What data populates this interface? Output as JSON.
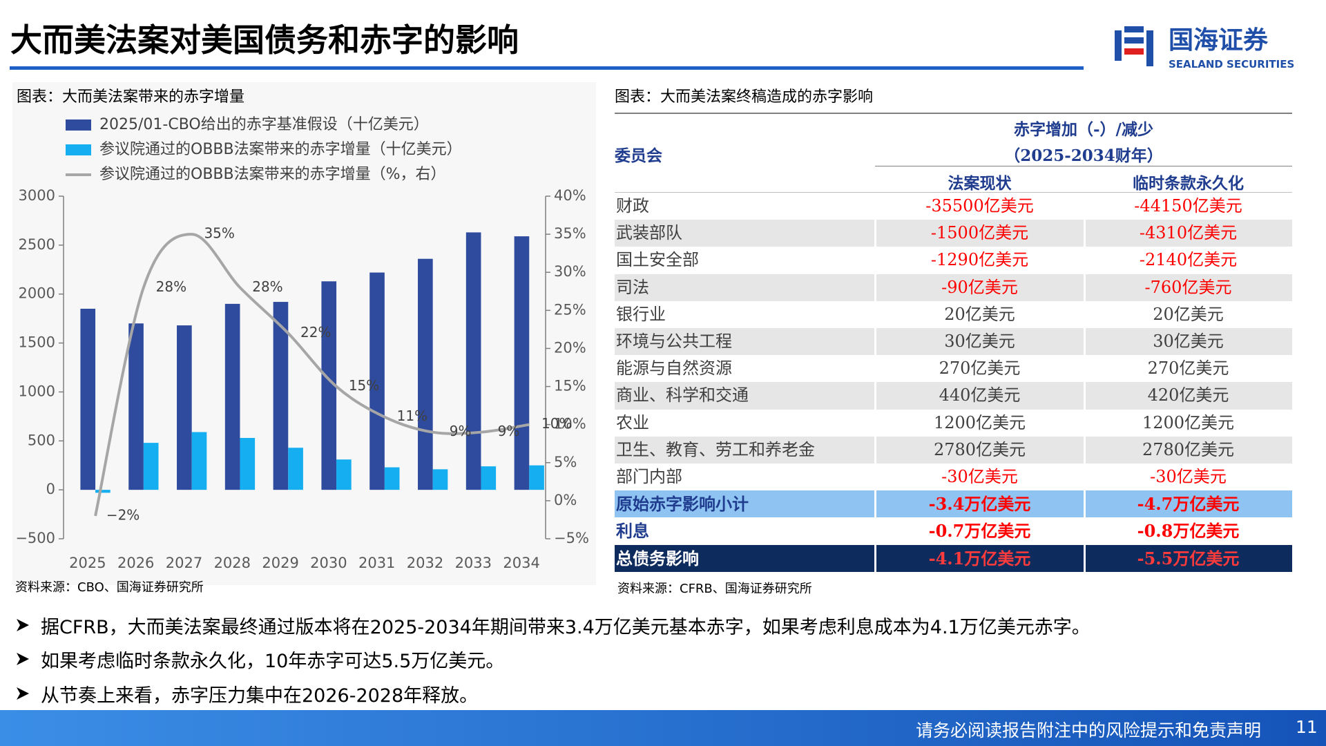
{
  "header": {
    "title": "大而美法案对美国债务和赤字的影响",
    "logo": {
      "cn": "国海证券",
      "en": "SEALAND SECURITIES"
    }
  },
  "left_caption": "图表：大而美法案带来的赤字增量",
  "left_source": "资料来源：CBO、国海证券研究所",
  "chart_data": {
    "type": "combo",
    "categories": [
      "2025",
      "2026",
      "2027",
      "2028",
      "2029",
      "2030",
      "2031",
      "2032",
      "2033",
      "2034"
    ],
    "series": [
      {
        "name": "2025/01-CBO给出的赤字基准假设（十亿美元）",
        "type": "bar",
        "color": "#2f4b9e",
        "values": [
          1850,
          1700,
          1680,
          1900,
          1920,
          2130,
          2220,
          2360,
          2630,
          2590
        ]
      },
      {
        "name": "参议院通过的OBBB法案带来的赤字增量（十亿美元）",
        "type": "bar",
        "color": "#15aef0",
        "values": [
          -30,
          480,
          590,
          530,
          430,
          310,
          230,
          210,
          240,
          250
        ]
      },
      {
        "name": "参议院通过的OBBB法案带来的赤字增量（%，右）",
        "type": "line",
        "axis": "y2",
        "color": "#a6a6a6",
        "values": [
          -2,
          28,
          35,
          28,
          22,
          15,
          11,
          9,
          9,
          10
        ],
        "value_labels": [
          "−2%",
          "28%",
          "35%",
          "28%",
          "22%",
          "15%",
          "11%",
          "9%",
          "9%",
          "10%"
        ]
      }
    ],
    "ylim": [
      -500,
      3000
    ],
    "yticks": [
      {
        "value": -500,
        "label": "−500"
      },
      0,
      500,
      1000,
      1500,
      2000,
      2500,
      3000
    ],
    "y2lim": [
      -5,
      40
    ],
    "y2ticks": [
      {
        "value": -5,
        "label": "−5%"
      },
      {
        "value": 0,
        "label": "0%"
      },
      {
        "value": 5,
        "label": "5%"
      },
      {
        "value": 10,
        "label": "10%"
      },
      {
        "value": 15,
        "label": "15%"
      },
      {
        "value": 20,
        "label": "20%"
      },
      {
        "value": 25,
        "label": "25%"
      },
      {
        "value": 30,
        "label": "30%"
      },
      {
        "value": 35,
        "label": "35%"
      },
      {
        "value": 40,
        "label": "40%"
      }
    ],
    "grid": false
  },
  "table": {
    "caption": "图表：大而美法案终稿造成的赤字影响",
    "header": {
      "committee": "委员会",
      "group": "赤字增加（-）/减少",
      "period": "（2025-2034财年）",
      "columns": [
        "法案现状",
        "临时条款永久化"
      ]
    },
    "rows": [
      [
        "财政",
        "-35500亿美元",
        "-44150亿美元"
      ],
      [
        "武装部队",
        "-1500亿美元",
        "-4310亿美元"
      ],
      [
        "国土安全部",
        "-1290亿美元",
        "-2140亿美元"
      ],
      [
        "司法",
        "-90亿美元",
        "-760亿美元"
      ],
      [
        "银行业",
        "20亿美元",
        "20亿美元"
      ],
      [
        "环境与公共工程",
        "30亿美元",
        "30亿美元"
      ],
      [
        "能源与自然资源",
        "270亿美元",
        "270亿美元"
      ],
      [
        "商业、科学和交通",
        "440亿美元",
        "420亿美元"
      ],
      [
        "农业",
        "1200亿美元",
        "1200亿美元"
      ],
      [
        "卫生、教育、劳工和养老金",
        "2780亿美元",
        "2780亿美元"
      ],
      [
        "部门内部",
        "-30亿美元",
        "-30亿美元"
      ],
      [
        "原始赤字影响小计",
        "-3.4万亿美元",
        "-4.7万亿美元"
      ],
      [
        "利息",
        "-0.7万亿美元",
        "-0.8万亿美元"
      ],
      [
        "总债务影响",
        "-4.1万亿美元",
        "-5.5万亿美元"
      ]
    ],
    "source": "资料来源：CFRB、国海证券研究所"
  },
  "bullets": [
    "据CFRB，大而美法案最终通过版本将在2025-2034年期间带来3.4万亿美元基本赤字，如果考虑利息成本为4.1万亿美元赤字。",
    "如果考虑临时条款永久化，10年赤字可达5.5万亿美元。",
    "从节奏上来看，赤字压力集中在2026-2028年释放。"
  ],
  "footer": {
    "disclaimer": "请务必阅读报告附注中的风险提示和免责声明",
    "page": "11"
  }
}
